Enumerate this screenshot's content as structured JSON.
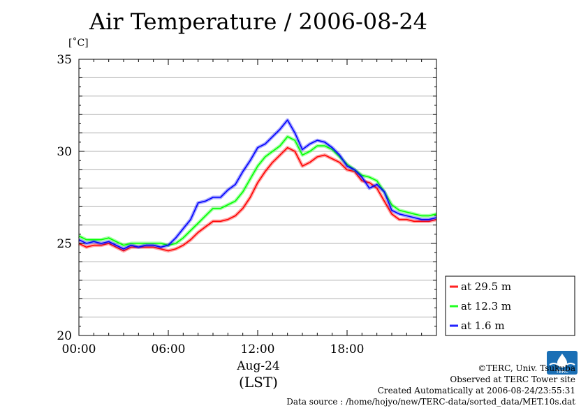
{
  "chart_data": {
    "type": "line",
    "title": "Air Temperature / 2006-08-24",
    "ylabel": "[˚C]",
    "xlabel_date": "Aug-24",
    "xlabel_tz": "(LST)",
    "ylim": [
      20,
      35
    ],
    "xlim": [
      0,
      24
    ],
    "y_ticks": [
      "20",
      "25",
      "30",
      "35"
    ],
    "x_ticks": [
      "00:00",
      "06:00",
      "12:00",
      "18:00"
    ],
    "grid": true,
    "legend_placement": "right",
    "series": [
      {
        "name": "at 29.5 m",
        "color": "#ff0000",
        "x": [
          0,
          0.5,
          1,
          1.5,
          2,
          2.5,
          3,
          3.5,
          4,
          4.5,
          5,
          5.5,
          6,
          6.5,
          7,
          7.5,
          8,
          8.5,
          9,
          9.5,
          10,
          10.5,
          11,
          11.5,
          12,
          12.5,
          13,
          13.5,
          14,
          14.5,
          15,
          15.5,
          16,
          16.5,
          17,
          17.5,
          18,
          18.5,
          19,
          19.5,
          20,
          20.5,
          21,
          21.5,
          22,
          22.5,
          23,
          23.5,
          24
        ],
        "values": [
          25.0,
          24.8,
          24.9,
          24.9,
          25.0,
          24.8,
          24.6,
          24.8,
          24.8,
          24.8,
          24.8,
          24.7,
          24.6,
          24.7,
          24.9,
          25.2,
          25.6,
          25.9,
          26.2,
          26.2,
          26.3,
          26.5,
          26.9,
          27.5,
          28.3,
          28.9,
          29.4,
          29.8,
          30.2,
          30.0,
          29.2,
          29.4,
          29.7,
          29.8,
          29.6,
          29.4,
          29.0,
          28.9,
          28.4,
          28.3,
          28.0,
          27.3,
          26.6,
          26.3,
          26.3,
          26.2,
          26.2,
          26.2,
          26.3
        ]
      },
      {
        "name": "at 12.3 m",
        "color": "#00ff00",
        "x": [
          0,
          0.5,
          1,
          1.5,
          2,
          2.5,
          3,
          3.5,
          4,
          4.5,
          5,
          5.5,
          6,
          6.5,
          7,
          7.5,
          8,
          8.5,
          9,
          9.5,
          10,
          10.5,
          11,
          11.5,
          12,
          12.5,
          13,
          13.5,
          14,
          14.5,
          15,
          15.5,
          16,
          16.5,
          17,
          17.5,
          18,
          18.5,
          19,
          19.5,
          20,
          20.5,
          21,
          21.5,
          22,
          22.5,
          23,
          23.5,
          24
        ],
        "values": [
          25.4,
          25.2,
          25.2,
          25.2,
          25.3,
          25.1,
          24.9,
          25.0,
          25.0,
          25.0,
          25.0,
          25.0,
          24.9,
          25.0,
          25.3,
          25.7,
          26.1,
          26.5,
          26.9,
          26.9,
          27.1,
          27.3,
          27.8,
          28.5,
          29.2,
          29.7,
          30.0,
          30.3,
          30.8,
          30.6,
          29.8,
          30.0,
          30.3,
          30.3,
          30.1,
          29.7,
          29.3,
          29.0,
          28.7,
          28.6,
          28.4,
          27.8,
          27.1,
          26.8,
          26.7,
          26.6,
          26.5,
          26.5,
          26.6
        ]
      },
      {
        "name": "at 1.6 m",
        "color": "#0000ff",
        "x": [
          0,
          0.5,
          1,
          1.5,
          2,
          2.5,
          3,
          3.5,
          4,
          4.5,
          5,
          5.5,
          6,
          6.5,
          7,
          7.5,
          8,
          8.5,
          9,
          9.5,
          10,
          10.5,
          11,
          11.5,
          12,
          12.5,
          13,
          13.5,
          14,
          14.5,
          15,
          15.5,
          16,
          16.5,
          17,
          17.5,
          18,
          18.5,
          19,
          19.5,
          20,
          20.5,
          21,
          21.5,
          22,
          22.5,
          23,
          23.5,
          24
        ],
        "values": [
          25.2,
          25.0,
          25.1,
          25.0,
          25.1,
          24.9,
          24.7,
          24.9,
          24.8,
          24.9,
          24.9,
          24.8,
          24.9,
          25.3,
          25.8,
          26.3,
          27.2,
          27.3,
          27.5,
          27.5,
          27.9,
          28.2,
          28.9,
          29.5,
          30.2,
          30.4,
          30.8,
          31.2,
          31.7,
          31.0,
          30.1,
          30.4,
          30.6,
          30.5,
          30.2,
          29.8,
          29.2,
          29.0,
          28.6,
          28.0,
          28.2,
          27.8,
          26.8,
          26.6,
          26.5,
          26.4,
          26.3,
          26.3,
          26.4
        ]
      }
    ]
  },
  "credits": {
    "copyright": "©TERC, Univ. Tsukuba",
    "observed": "Observed at TERC Tower site",
    "created": "Created Automatically at 2006-08-24/23:55:31",
    "source": "Data source : /home/hojyo/new/TERC-data/sorted_data/MET.10s.dat"
  },
  "logo": {
    "text": "TERC",
    "color": "#1a6fb5"
  }
}
